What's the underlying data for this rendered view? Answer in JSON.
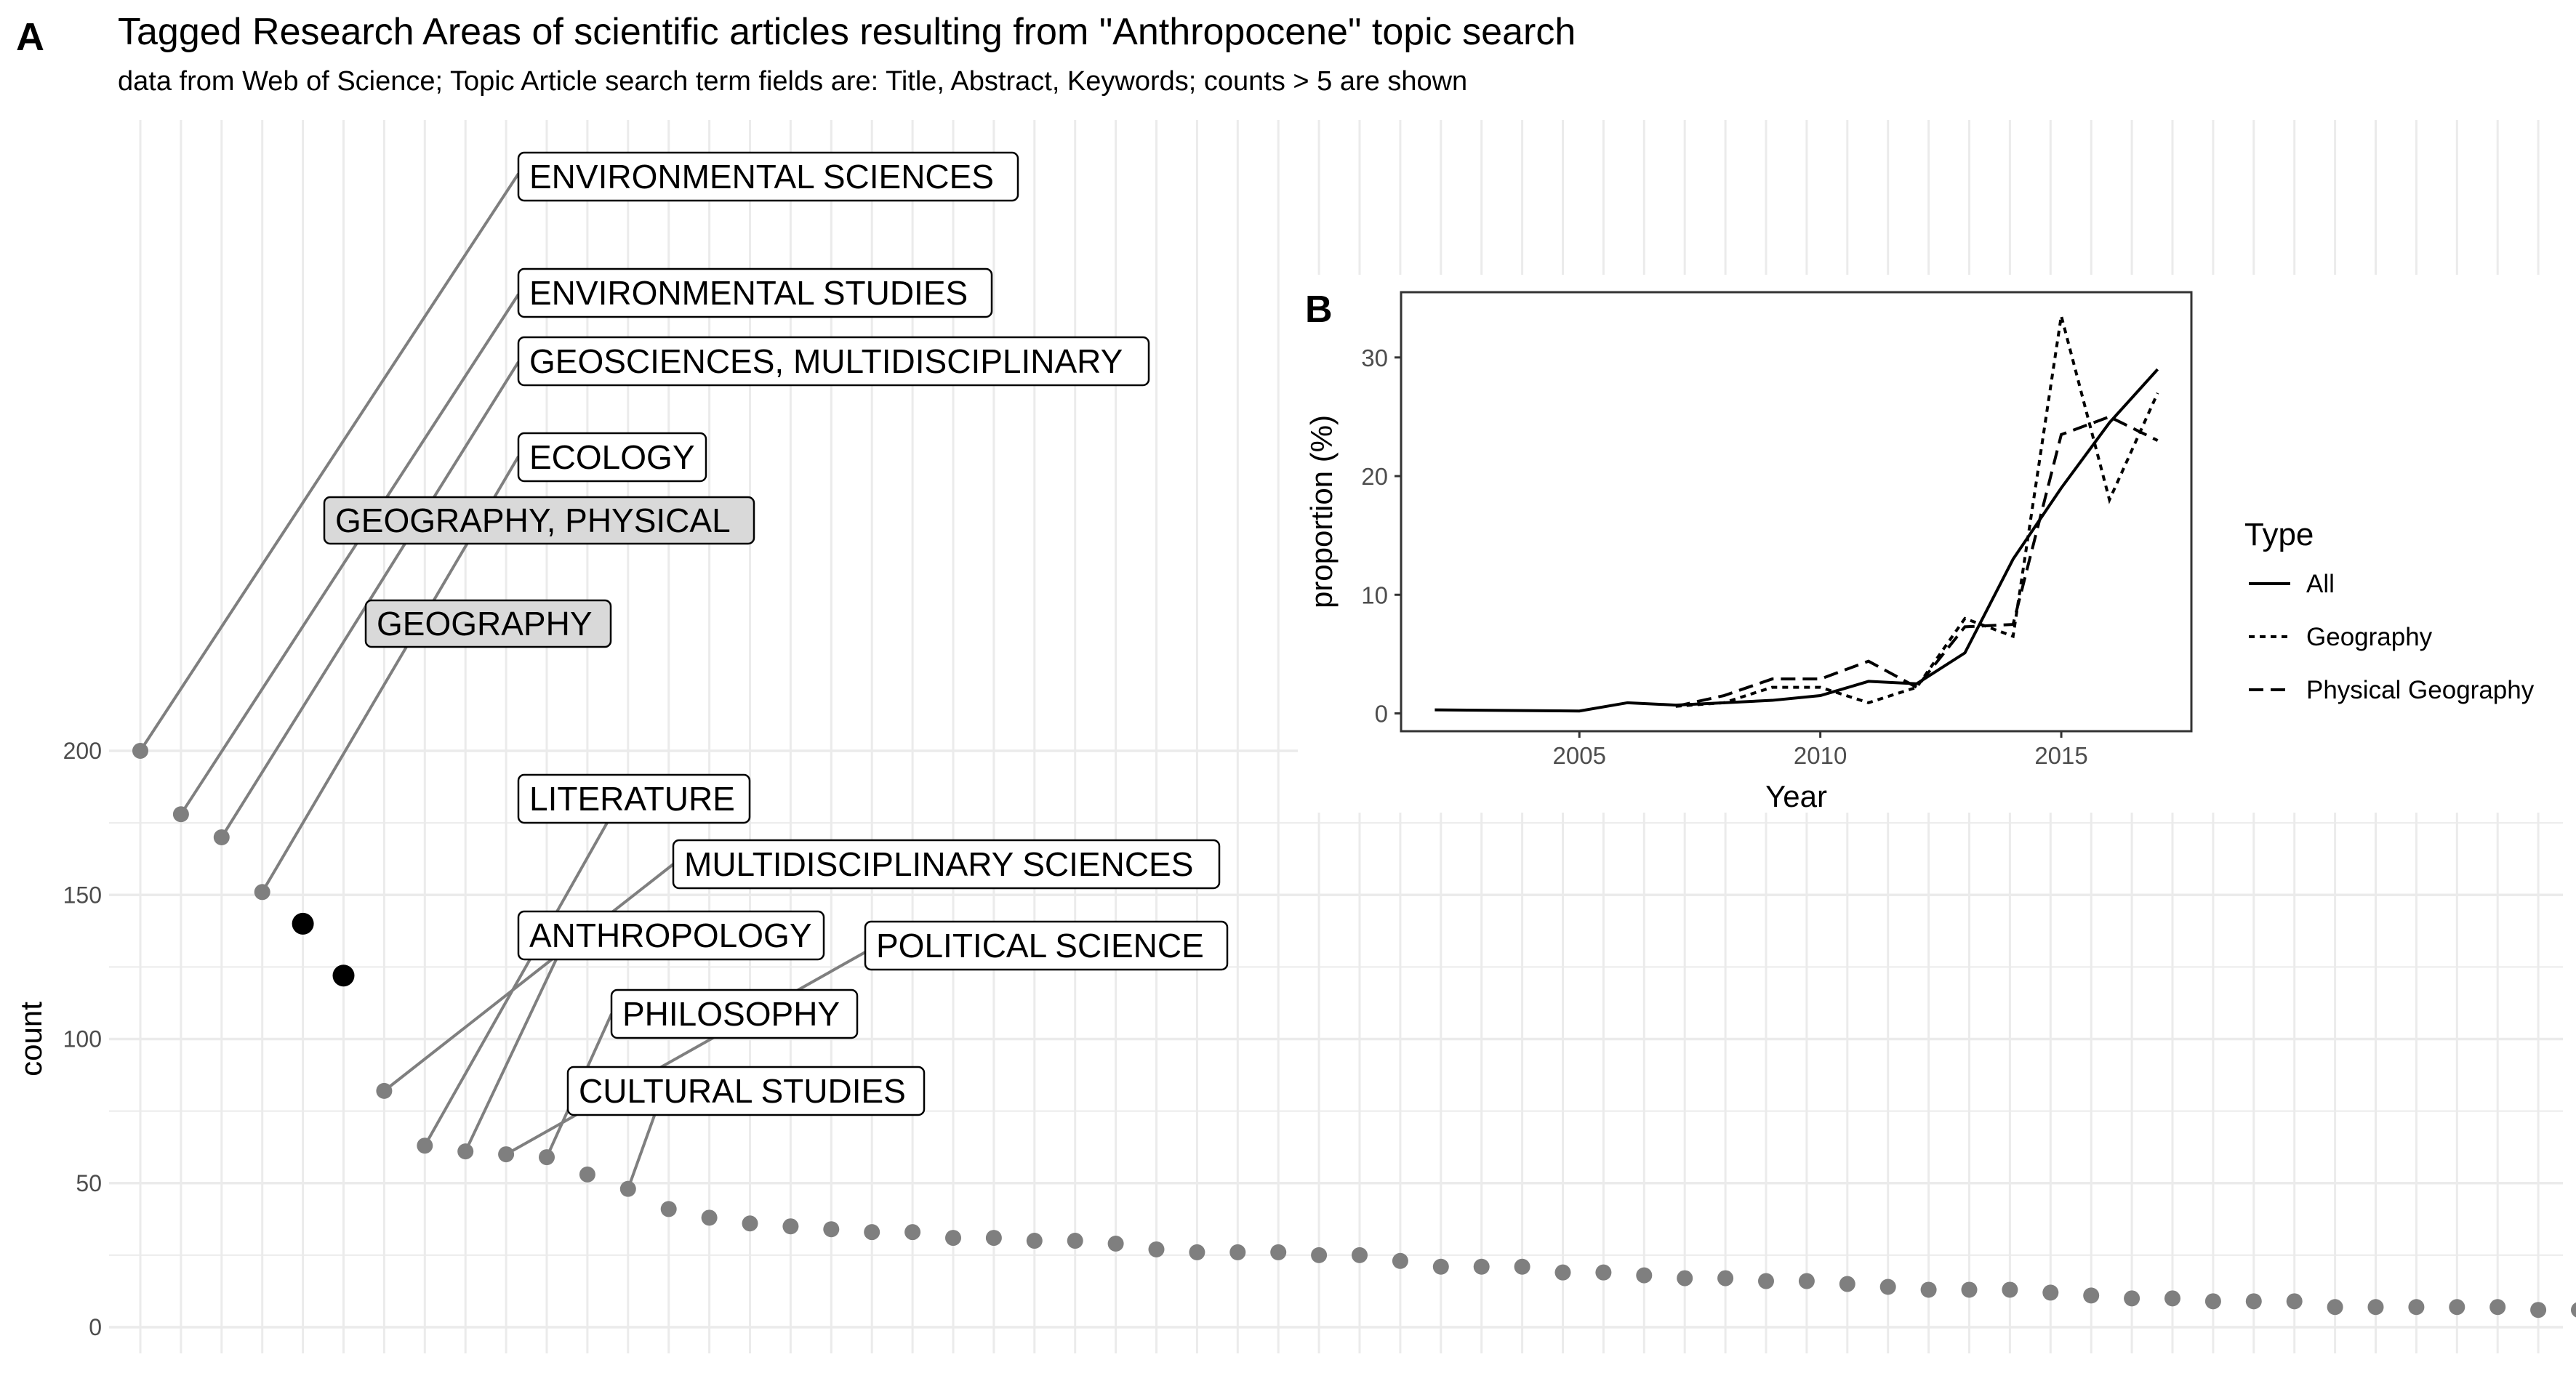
{
  "panel_a_letter": "A",
  "panel_b_letter": "B",
  "title": "Tagged Research Areas of scientific articles resulting from \"Anthropocene\" topic search",
  "subtitle": "data from Web of Science; Topic Article search term fields are: Title, Abstract, Keywords; counts > 5 are shown",
  "colors": {
    "point": "#7f7f7f",
    "highlight": "#000000",
    "grid": "#ebebeb",
    "highlight_label_fill": "#d9d9d9"
  },
  "chart_data": [
    {
      "type": "scatter",
      "title": "Tagged Research Areas of scientific articles resulting from \"Anthropocene\" topic search",
      "subtitle": "data from Web of Science; Topic Article search term fields are: Title, Abstract, Keywords; counts > 5 are shown",
      "xlabel": "",
      "ylabel": "count",
      "ylim": [
        0,
        200
      ],
      "yticks": [
        0,
        50,
        100,
        150,
        200
      ],
      "grid": true,
      "values": [
        200,
        178,
        170,
        151,
        140,
        122,
        82,
        63,
        61,
        60,
        59,
        53,
        48,
        41,
        38,
        36,
        35,
        34,
        33,
        33,
        31,
        31,
        30,
        30,
        29,
        27,
        26,
        26,
        26,
        25,
        25,
        23,
        21,
        21,
        21,
        19,
        19,
        18,
        17,
        17,
        16,
        16,
        15,
        14,
        13,
        13,
        13,
        12,
        11,
        10,
        10,
        9,
        9,
        9,
        7,
        7,
        7,
        7,
        7,
        6,
        6
      ],
      "highlighted": [
        4,
        5
      ],
      "labels": [
        {
          "index": 0,
          "text": "ENVIRONMENTAL SCIENCES"
        },
        {
          "index": 1,
          "text": "ENVIRONMENTAL STUDIES"
        },
        {
          "index": 2,
          "text": "GEOSCIENCES, MULTIDISCIPLINARY"
        },
        {
          "index": 3,
          "text": "ECOLOGY"
        },
        {
          "index": 4,
          "text": "GEOGRAPHY, PHYSICAL"
        },
        {
          "index": 5,
          "text": "GEOGRAPHY"
        },
        {
          "index": 7,
          "text": "LITERATURE"
        },
        {
          "index": 6,
          "text": "MULTIDISCIPLINARY SCIENCES"
        },
        {
          "index": 8,
          "text": "ANTHROPOLOGY"
        },
        {
          "index": 9,
          "text": "POLITICAL SCIENCE"
        },
        {
          "index": 10,
          "text": "PHILOSOPHY"
        },
        {
          "index": 12,
          "text": "CULTURAL STUDIES"
        }
      ]
    },
    {
      "type": "line",
      "xlabel": "Year",
      "ylabel": "proportion (%)",
      "xlim": [
        2001.3,
        2017.7
      ],
      "ylim": [
        -1.5,
        35.5
      ],
      "xticks": [
        2005,
        2010,
        2015
      ],
      "yticks": [
        0,
        10,
        20,
        30
      ],
      "legend_title": "Type",
      "legend_position": "right",
      "series": [
        {
          "name": "All",
          "dash": "solid",
          "x": [
            2002,
            2005,
            2006,
            2007,
            2008,
            2009,
            2010,
            2011,
            2012,
            2013,
            2014,
            2015,
            2016,
            2017
          ],
          "values": [
            0.3,
            0.2,
            0.9,
            0.7,
            0.9,
            1.1,
            1.5,
            2.7,
            2.5,
            5.1,
            13.0,
            19.0,
            24.5,
            29.0
          ]
        },
        {
          "name": "Geography",
          "dash": "dotted",
          "x": [
            2007,
            2008,
            2009,
            2010,
            2011,
            2012,
            2013,
            2014,
            2015,
            2016,
            2017
          ],
          "values": [
            0.6,
            0.9,
            2.2,
            2.2,
            0.9,
            2.2,
            8.0,
            6.5,
            33.5,
            18.0,
            27.0
          ]
        },
        {
          "name": "Physical Geography",
          "dash": "dashed",
          "x": [
            2007,
            2008,
            2009,
            2010,
            2011,
            2012,
            2013,
            2014,
            2015,
            2016,
            2017
          ],
          "values": [
            0.6,
            1.5,
            2.9,
            2.9,
            4.4,
            2.2,
            7.3,
            7.5,
            23.5,
            25.0,
            23.0
          ]
        }
      ]
    }
  ]
}
